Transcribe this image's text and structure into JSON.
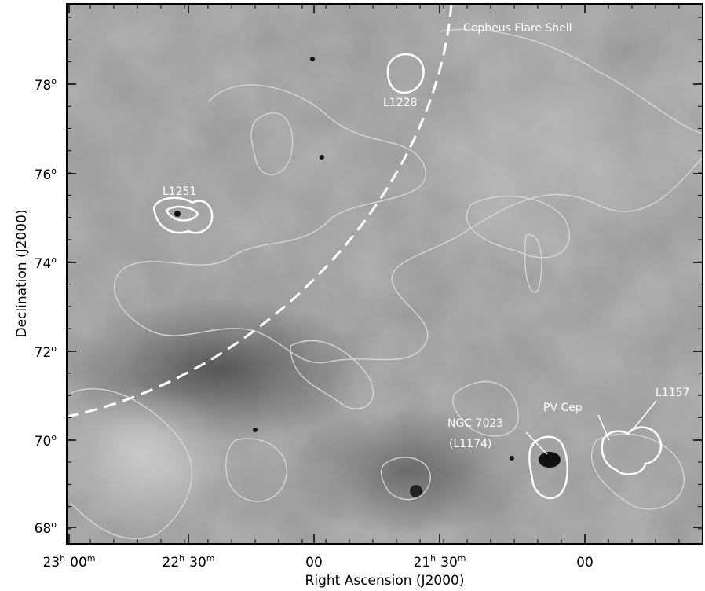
{
  "figure": {
    "annotations": {
      "shell": "Cepheus Flare Shell",
      "l1228": "L1228",
      "l1251": "L1251",
      "ngc7023": "NGC 7023",
      "l1174": "(L1174)",
      "pvcep": "PV Cep",
      "l1157": "L1157"
    },
    "y_axis": {
      "title": "Declination (J2000)",
      "degree_mark": "o",
      "ticks": [
        "78",
        "76",
        "74",
        "72",
        "70",
        "68"
      ]
    },
    "x_axis": {
      "title": "Right Ascension (J2000)",
      "hour_mark": "h",
      "minute_mark": "m",
      "ticks": [
        {
          "hours": "23",
          "minutes": "00"
        },
        {
          "hours": "22",
          "minutes": "30"
        },
        {
          "minutes": "00"
        },
        {
          "hours": "21",
          "minutes": "30"
        },
        {
          "minutes": "00"
        }
      ]
    }
  }
}
